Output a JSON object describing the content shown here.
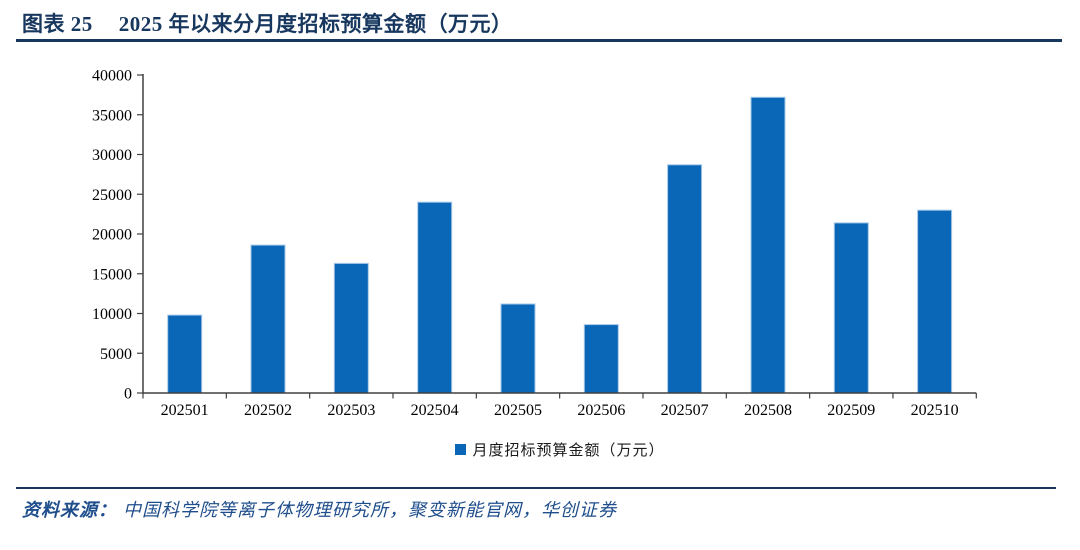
{
  "header": {
    "figure_label": "图表 25",
    "title": "2025 年以来分月度招标预算金额（万元）"
  },
  "chart_data": {
    "type": "bar",
    "title": "2025 年以来分月度招标预算金额（万元）",
    "categories": [
      "202501",
      "202502",
      "202503",
      "202504",
      "202505",
      "202506",
      "202507",
      "202508",
      "202509",
      "202510"
    ],
    "values": [
      9800,
      18600,
      16300,
      24000,
      11200,
      8600,
      28700,
      37200,
      21400,
      23000
    ],
    "xlabel": "",
    "ylabel": "",
    "ylim": [
      0,
      40000
    ],
    "ytick_interval": 5000,
    "ytick_labels": [
      "0",
      "5000",
      "10000",
      "15000",
      "20000",
      "25000",
      "30000",
      "35000",
      "40000"
    ],
    "grid": false,
    "legend_position": "bottom-center",
    "legend_label": "月度招标预算金额（万元）",
    "bar_color": "#0A67B7",
    "bar_border_color": "#A6C8E8",
    "axis_color": "#404040",
    "tick_label_color": "#000000"
  },
  "footer": {
    "source_prefix": "资料来源：",
    "source_text": "中国科学院等离子体物理研究所，聚变新能官网，华创证券"
  },
  "theme": {
    "accent_color": "#17375E",
    "footer_text_color": "#1F4E8C"
  }
}
